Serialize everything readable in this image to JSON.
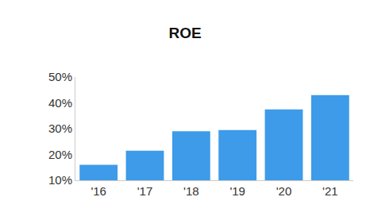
{
  "chart_data": {
    "type": "bar",
    "title": "ROE",
    "categories": [
      "'16",
      "'17",
      "'18",
      "'19",
      "'20",
      "'21"
    ],
    "values": [
      16,
      21.5,
      29,
      29.5,
      37.5,
      43
    ],
    "color": "#3d9be9",
    "ylim": [
      10,
      50
    ],
    "yticks": [
      {
        "value": 10,
        "label": "10%"
      },
      {
        "value": 20,
        "label": "20%"
      },
      {
        "value": 30,
        "label": "30%"
      },
      {
        "value": 40,
        "label": "40%"
      },
      {
        "value": 50,
        "label": "50%"
      }
    ],
    "grid": false
  }
}
